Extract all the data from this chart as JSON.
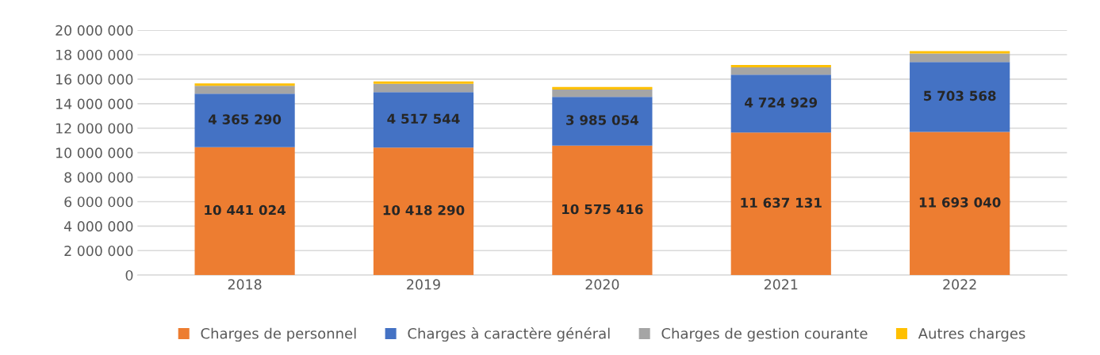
{
  "chart_data": {
    "type": "bar",
    "stacked": true,
    "categories": [
      "2018",
      "2019",
      "2020",
      "2021",
      "2022"
    ],
    "series": [
      {
        "name": "Charges de personnel",
        "color": "#ed7d31",
        "values": [
          10441024,
          10418290,
          10575416,
          11637131,
          11693040
        ],
        "value_labels": [
          "10 441 024",
          "10 418 290",
          "10 575 416",
          "11 637 131",
          "11 693 040"
        ]
      },
      {
        "name": "Charges à caractère général",
        "color": "#4472c4",
        "values": [
          4365290,
          4517544,
          3985054,
          4724929,
          5703568
        ],
        "value_labels": [
          "4 365 290",
          "4 517 544",
          "3 985 054",
          "4 724 929",
          "5 703 568"
        ]
      },
      {
        "name": "Charges de gestion courante",
        "color": "#a5a5a5",
        "values": [
          650000,
          680000,
          600000,
          600000,
          700000
        ]
      },
      {
        "name": "Autres charges",
        "color": "#ffc000",
        "values": [
          200000,
          200000,
          200000,
          200000,
          200000
        ]
      }
    ],
    "ylim": [
      0,
      20000000
    ],
    "yticks": [
      {
        "value": 0,
        "label": "0"
      },
      {
        "value": 2000000,
        "label": "2 000 000"
      },
      {
        "value": 4000000,
        "label": "4 000 000"
      },
      {
        "value": 6000000,
        "label": "6 000 000"
      },
      {
        "value": 8000000,
        "label": "8 000 000"
      },
      {
        "value": 10000000,
        "label": "10 000 000"
      },
      {
        "value": 12000000,
        "label": "12 000 000"
      },
      {
        "value": 14000000,
        "label": "14 000 000"
      },
      {
        "value": 16000000,
        "label": "16 000 000"
      },
      {
        "value": 18000000,
        "label": "18 000 000"
      },
      {
        "value": 20000000,
        "label": "20 000 000"
      }
    ],
    "grid": "y",
    "legend": "bottom"
  }
}
